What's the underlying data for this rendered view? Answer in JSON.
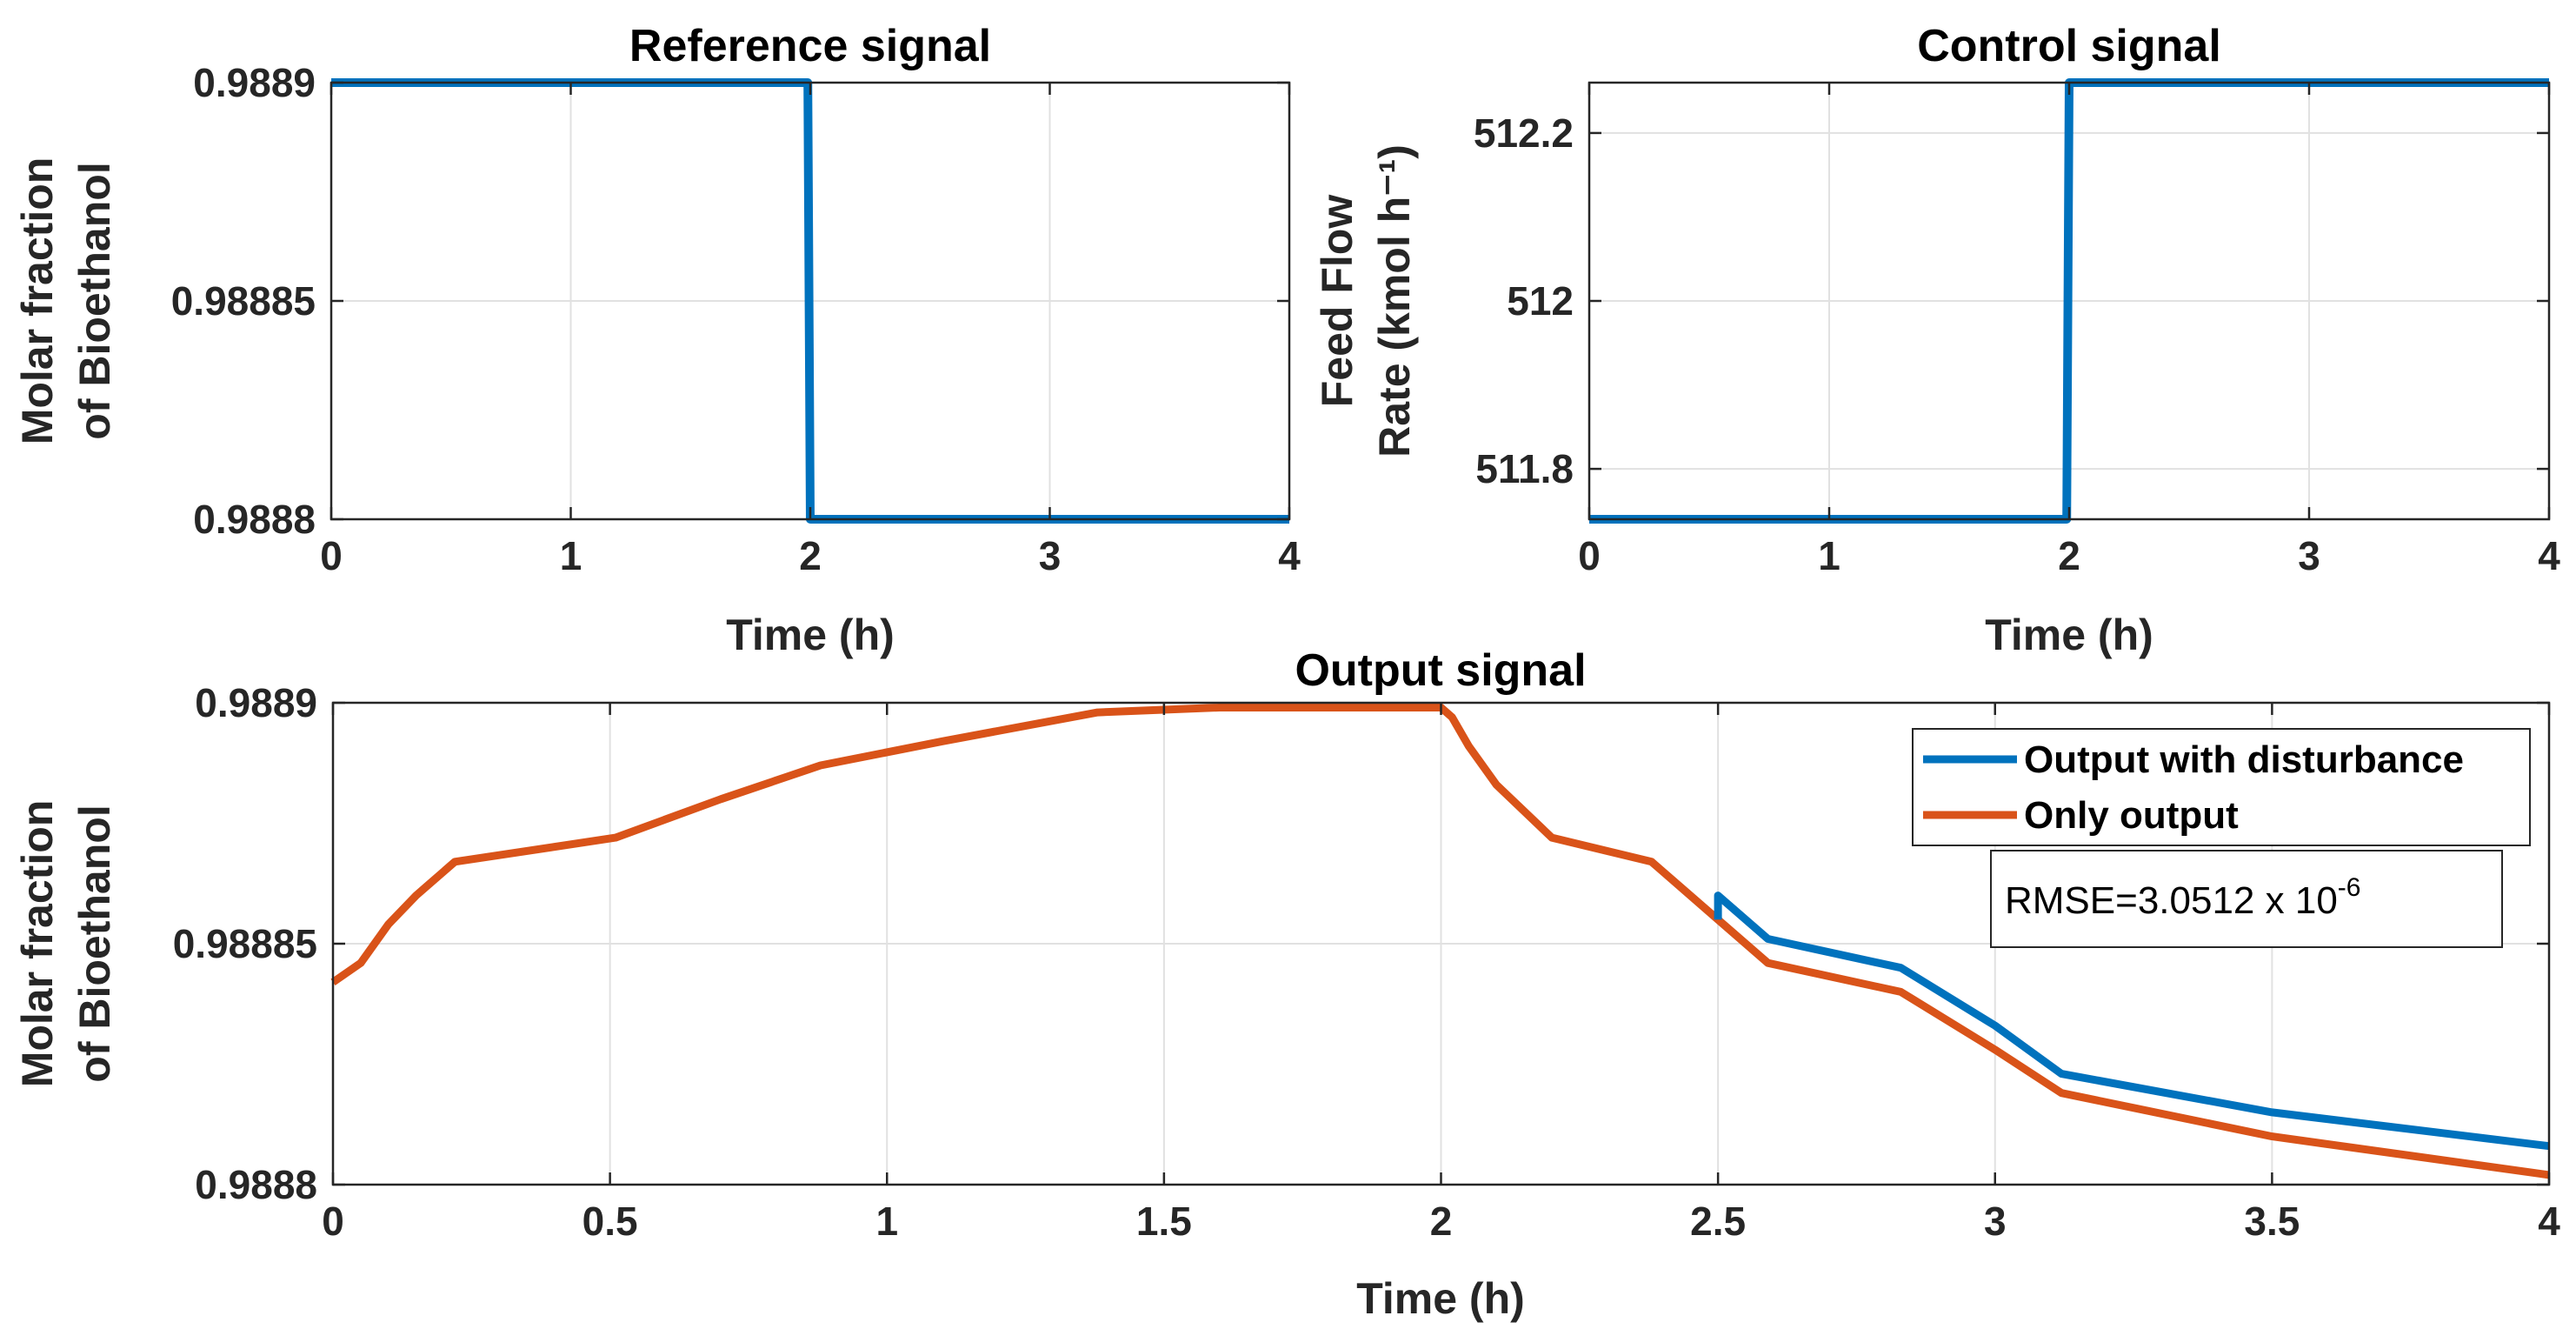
{
  "chart_data": [
    {
      "id": "reference",
      "type": "line",
      "title": "Reference signal",
      "xlabel": "Time (h)",
      "ylabel_lines": [
        "Molar fraction",
        "of Bioethanol"
      ],
      "xlim": [
        0,
        4
      ],
      "ylim": [
        0.9888,
        0.9889
      ],
      "xticks": [
        0,
        1,
        2,
        3,
        4
      ],
      "xtick_labels": [
        "0",
        "1",
        "2",
        "3",
        "4"
      ],
      "yticks": [
        0.9888,
        0.98885,
        0.9889
      ],
      "ytick_labels": [
        "0.9888",
        "0.98885",
        "0.9889"
      ],
      "grid": true,
      "series": [
        {
          "name": "Reference",
          "color": "#0072BD",
          "x": [
            0,
            1.99,
            2.0,
            4
          ],
          "y": [
            0.9889,
            0.9889,
            0.9888,
            0.9888
          ]
        }
      ]
    },
    {
      "id": "control",
      "type": "line",
      "title": "Control signal",
      "xlabel": "Time (h)",
      "ylabel_lines": [
        "Feed Flow",
        "Rate (kmol h⁻¹)"
      ],
      "xlim": [
        0,
        4
      ],
      "ylim": [
        511.74,
        512.26
      ],
      "xticks": [
        0,
        1,
        2,
        3,
        4
      ],
      "xtick_labels": [
        "0",
        "1",
        "2",
        "3",
        "4"
      ],
      "yticks": [
        511.8,
        512,
        512.2
      ],
      "ytick_labels": [
        "511.8",
        "512",
        "512.2"
      ],
      "grid": true,
      "series": [
        {
          "name": "Control",
          "color": "#0072BD",
          "x": [
            0,
            1.99,
            2.0,
            4
          ],
          "y": [
            511.74,
            511.74,
            512.26,
            512.26
          ]
        }
      ]
    },
    {
      "id": "output",
      "type": "line",
      "title": "Output signal",
      "xlabel": "Time (h)",
      "ylabel_lines": [
        "Molar fraction",
        "of Bioethanol"
      ],
      "xlim": [
        0,
        4
      ],
      "ylim": [
        0.9888,
        0.9889
      ],
      "xticks": [
        0,
        0.5,
        1,
        1.5,
        2,
        2.5,
        3,
        3.5,
        4
      ],
      "xtick_labels": [
        "0",
        "0.5",
        "1",
        "1.5",
        "2",
        "2.5",
        "3",
        "3.5",
        "4"
      ],
      "yticks": [
        0.9888,
        0.98885,
        0.9889
      ],
      "ytick_labels": [
        "0.9888",
        "0.98885",
        "0.9889"
      ],
      "grid": true,
      "legend_position": "top-right",
      "annotation": {
        "text": "RMSE=3.0512 x 10",
        "superscript": "-6"
      },
      "series": [
        {
          "name": "Output with disturbance",
          "color": "#0072BD",
          "x": [
            2.5,
            2.5,
            2.59,
            2.83,
            3.0,
            3.12,
            3.5,
            4.0
          ],
          "y": [
            0.988855,
            0.98886,
            0.988851,
            0.988845,
            0.988833,
            0.988823,
            0.988815,
            0.988808
          ]
        },
        {
          "name": "Only output",
          "color": "#D95319",
          "x": [
            0,
            0.05,
            0.1,
            0.15,
            0.22,
            0.51,
            0.7,
            0.88,
            1.1,
            1.38,
            1.6,
            2.0,
            2.02,
            2.05,
            2.1,
            2.2,
            2.38,
            2.5,
            2.59,
            2.83,
            3.0,
            3.12,
            3.5,
            4.0
          ],
          "y": [
            0.988842,
            0.988846,
            0.988854,
            0.98886,
            0.988867,
            0.988872,
            0.98888,
            0.988887,
            0.988892,
            0.988898,
            0.988899,
            0.988899,
            0.988897,
            0.988891,
            0.988883,
            0.988872,
            0.988867,
            0.988855,
            0.988846,
            0.98884,
            0.988828,
            0.988819,
            0.98881,
            0.988802
          ]
        }
      ]
    }
  ]
}
